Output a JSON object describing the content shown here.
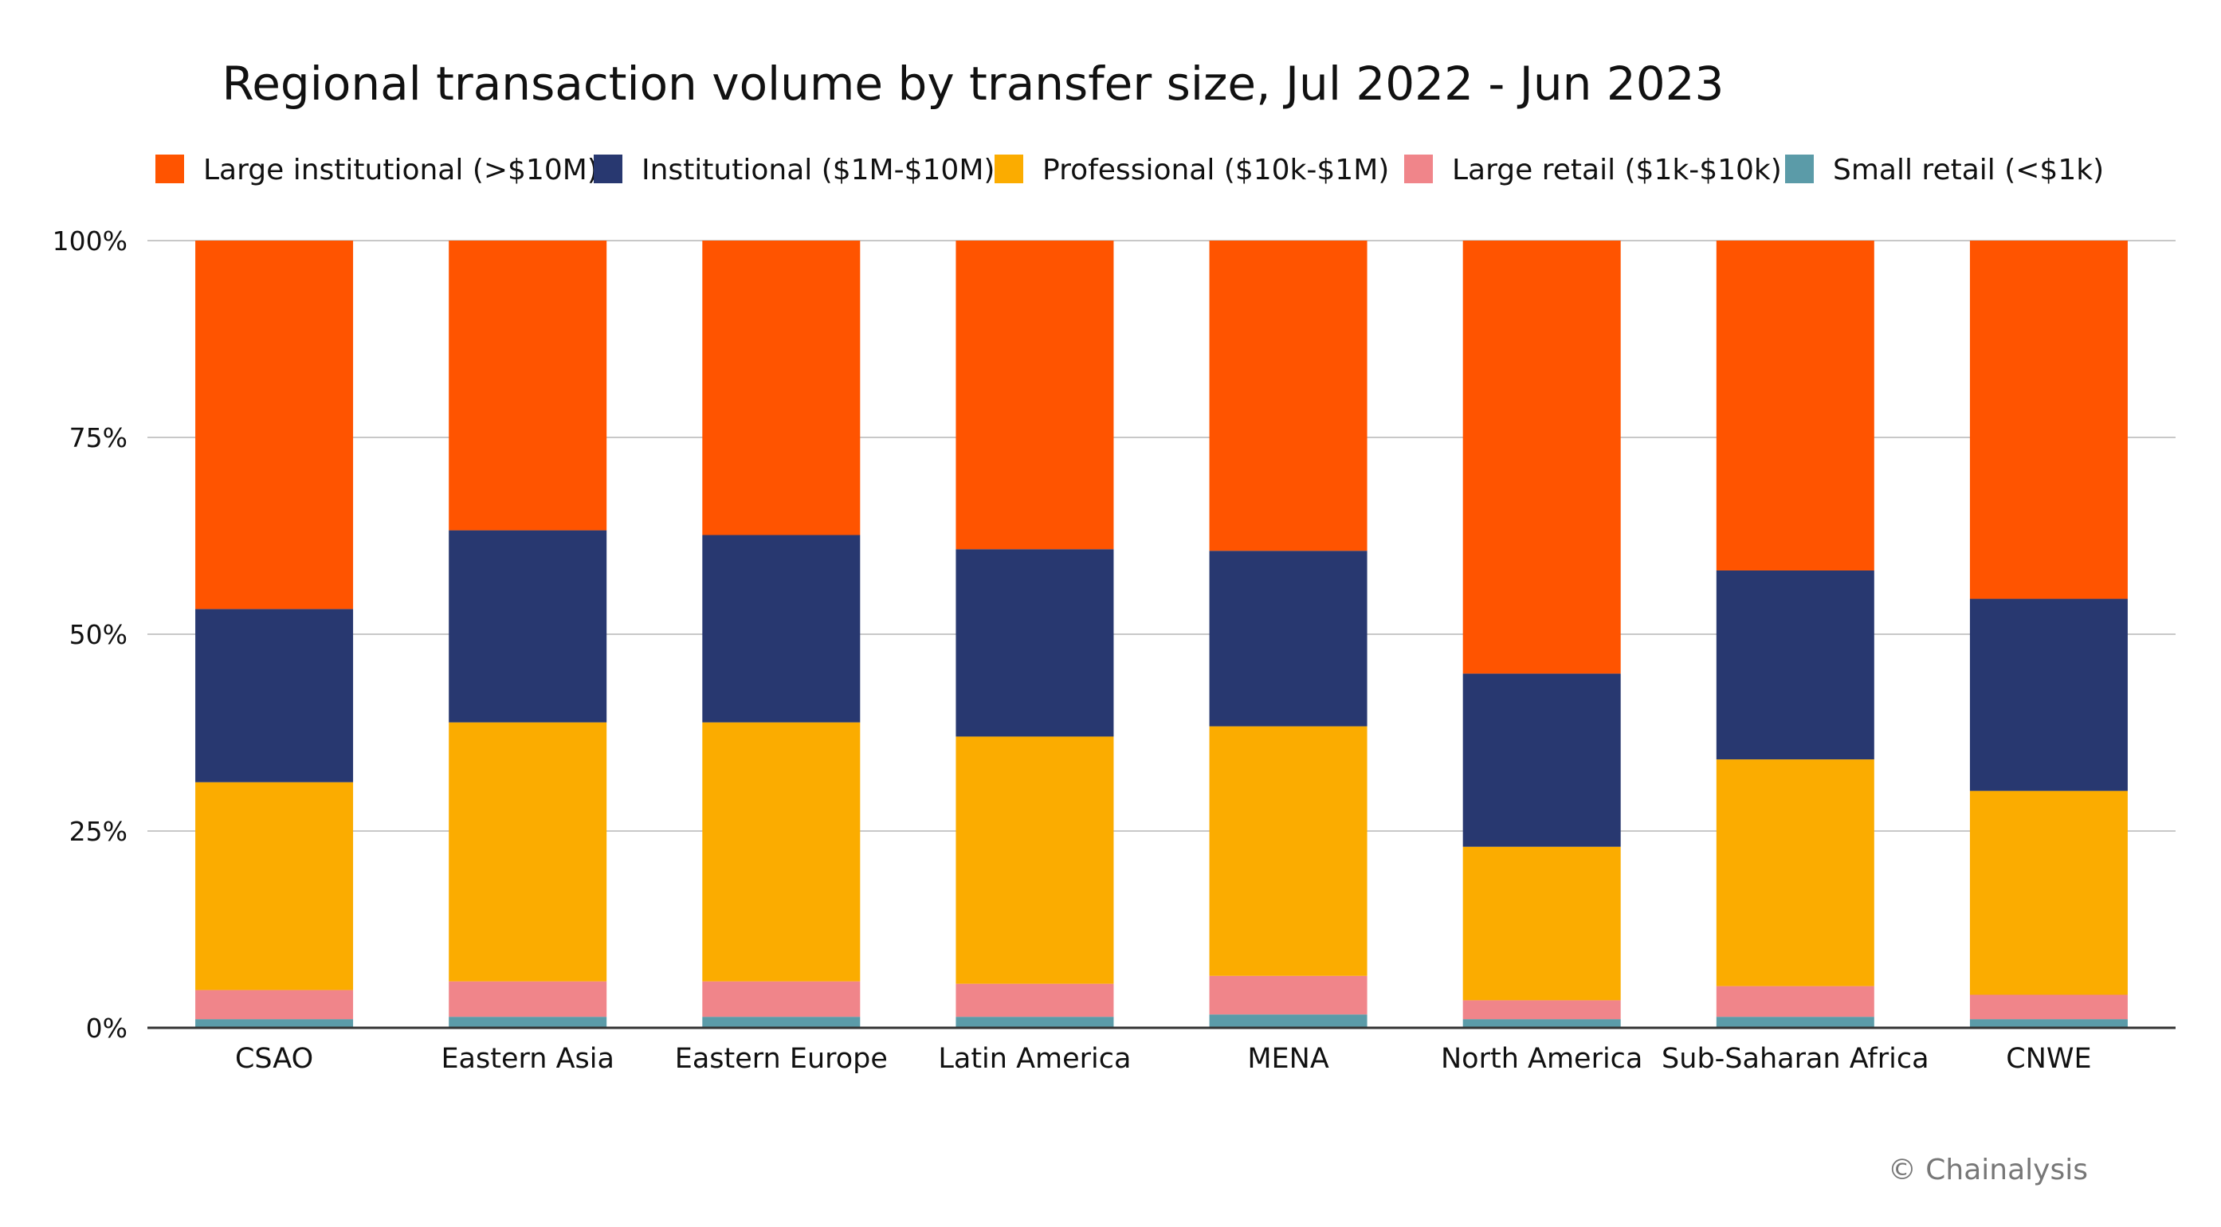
{
  "chart_data": {
    "type": "bar",
    "stacked": true,
    "normalized": true,
    "title": "Regional transaction volume by transfer size, Jul 2022 - Jun 2023",
    "xlabel": "",
    "ylabel": "",
    "ylim": [
      0,
      100
    ],
    "y_ticks": [
      {
        "value": 0,
        "label": "0%"
      },
      {
        "value": 25,
        "label": "25%"
      },
      {
        "value": 50,
        "label": "50%"
      },
      {
        "value": 75,
        "label": "75%"
      },
      {
        "value": 100,
        "label": "100%"
      }
    ],
    "grid": true,
    "legend_position": "top",
    "categories": [
      "CSAO",
      "Eastern Asia",
      "Eastern Europe",
      "Latin America",
      "MENA",
      "North America",
      "Sub-Saharan Africa",
      "CNWE"
    ],
    "series": [
      {
        "name": "Large institutional (>$10M)",
        "color": "#FF5400",
        "values": [
          46.8,
          36.8,
          37.4,
          39.2,
          39.4,
          55.0,
          41.9,
          45.5
        ]
      },
      {
        "name": "Institutional ($1M-$10M)",
        "color": "#283870",
        "values": [
          22.0,
          24.4,
          23.8,
          23.8,
          22.3,
          22.0,
          24.0,
          24.4
        ]
      },
      {
        "name": "Professional ($10k-$1M)",
        "color": "#FBAC00",
        "values": [
          26.4,
          32.9,
          32.9,
          31.4,
          31.7,
          19.5,
          28.8,
          25.9
        ]
      },
      {
        "name": "Large retail ($1k-$10k)",
        "color": "#F0858A",
        "values": [
          3.7,
          4.5,
          4.5,
          4.2,
          4.9,
          2.4,
          3.9,
          3.1
        ]
      },
      {
        "name": "Small retail (<$1k)",
        "color": "#5B9BA8",
        "values": [
          1.1,
          1.4,
          1.4,
          1.4,
          1.7,
          1.1,
          1.4,
          1.1
        ]
      }
    ],
    "watermark": "© Chainalysis"
  },
  "colors": {
    "grid": "#C8C8C8",
    "axis": "#333333",
    "text": "#111111",
    "watermark": "#777777"
  }
}
